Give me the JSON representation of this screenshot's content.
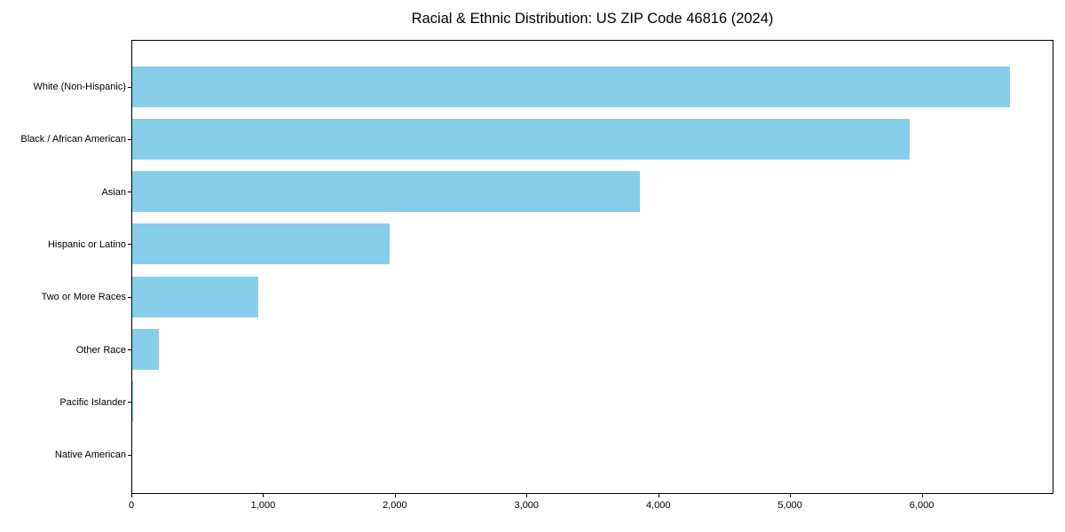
{
  "chart_data": {
    "type": "bar",
    "orientation": "horizontal",
    "title": "Racial & Ethnic Distribution: US ZIP Code 46816 (2024)",
    "categories": [
      "White (Non-Hispanic)",
      "Black / African American",
      "Asian",
      "Hispanic or Latino",
      "Two or More Races",
      "Other Race",
      "Pacific Islander",
      "Native American"
    ],
    "values": [
      6660,
      5900,
      3855,
      1955,
      955,
      200,
      10,
      0
    ],
    "xlabel": "",
    "ylabel": "",
    "xlim": [
      0,
      7000
    ],
    "xticks": {
      "values": [
        0,
        1000,
        2000,
        3000,
        4000,
        5000,
        6000
      ],
      "labels": [
        "0",
        "1,000",
        "2,000",
        "3,000",
        "4,000",
        "5,000",
        "6,000"
      ]
    },
    "grid": false,
    "legend": "none",
    "bar_color": "#87CEEB",
    "spine_color": "#000000",
    "text_color": "#000000",
    "background_color": "#FFFFFF"
  }
}
